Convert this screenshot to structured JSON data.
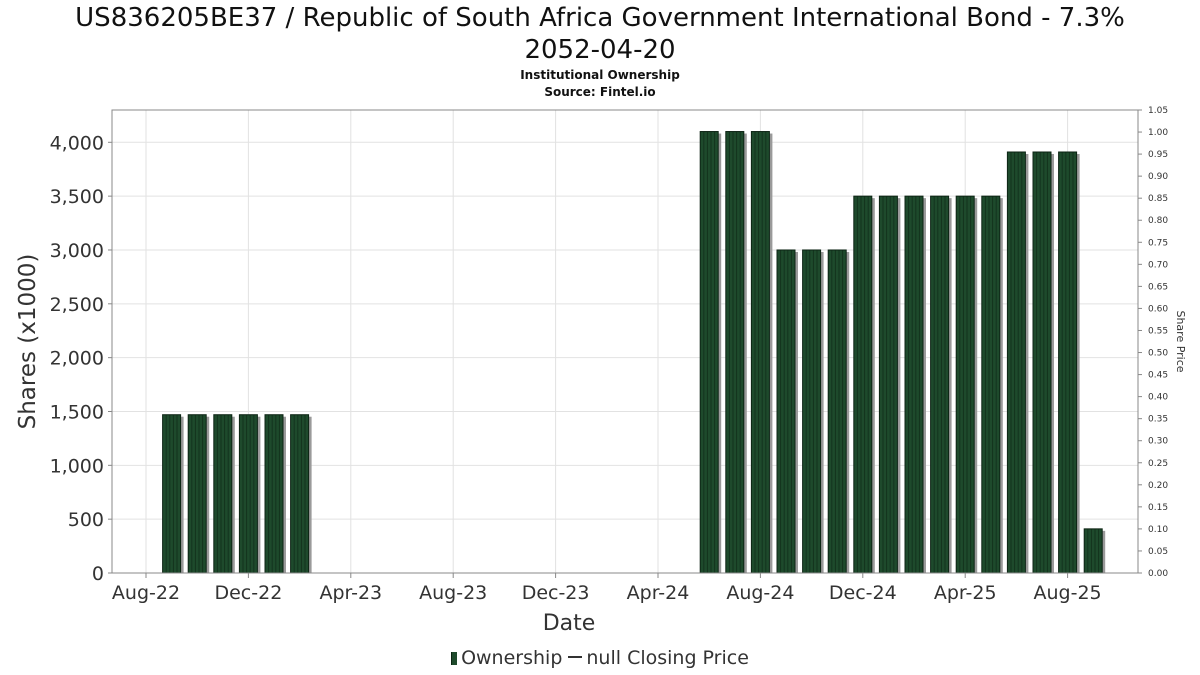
{
  "header": {
    "title_line1": "US836205BE37 / Republic of South Africa Government International Bond - 7.3%",
    "title_line2": "2052-04-20",
    "subtitle": "Institutional Ownership",
    "source": "Source: Fintel.io"
  },
  "legend": {
    "ownership": "Ownership",
    "price": "null Closing Price"
  },
  "colors": {
    "bar": "#1e4a2c",
    "bar_dark": "#0c2414",
    "bar_shadow": "#9a9a9a",
    "grid": "#e2e2e2"
  },
  "chart_data": {
    "type": "bar",
    "xlabel": "Date",
    "ylabel": "Shares (x1000)",
    "y2label": "Share Price",
    "ylim": [
      0,
      4300
    ],
    "y2lim": [
      0,
      1.05
    ],
    "yticks": [
      "0",
      "500",
      "1,000",
      "1,500",
      "2,000",
      "2,500",
      "3,000",
      "3,500",
      "4,000"
    ],
    "y2ticks": [
      "0.00",
      "0.05",
      "0.10",
      "0.15",
      "0.20",
      "0.25",
      "0.30",
      "0.35",
      "0.40",
      "0.45",
      "0.50",
      "0.55",
      "0.60",
      "0.65",
      "0.70",
      "0.75",
      "0.80",
      "0.85",
      "0.90",
      "0.95",
      "1.00",
      "1.05"
    ],
    "xticks": [
      "Aug-22",
      "Dec-22",
      "Apr-23",
      "Aug-23",
      "Dec-23",
      "Apr-24",
      "Aug-24",
      "Dec-24",
      "Apr-25",
      "Aug-25"
    ],
    "grid": true,
    "legend_position": "bottom",
    "series": [
      {
        "name": "Ownership",
        "dates": [
          "2022-09",
          "2022-10",
          "2022-11",
          "2022-12",
          "2023-01",
          "2023-02",
          "2024-06",
          "2024-07",
          "2024-08",
          "2024-09",
          "2024-10",
          "2024-11",
          "2024-12",
          "2025-01",
          "2025-02",
          "2025-03",
          "2025-04",
          "2025-05",
          "2025-06",
          "2025-07",
          "2025-08",
          "2025-09"
        ],
        "values": [
          1470,
          1470,
          1470,
          1470,
          1470,
          1470,
          4100,
          4100,
          4100,
          3000,
          3000,
          3000,
          3500,
          3500,
          3500,
          3500,
          3500,
          3500,
          3910,
          3910,
          3910,
          410
        ]
      },
      {
        "name": "null Closing Price",
        "values": []
      }
    ]
  }
}
